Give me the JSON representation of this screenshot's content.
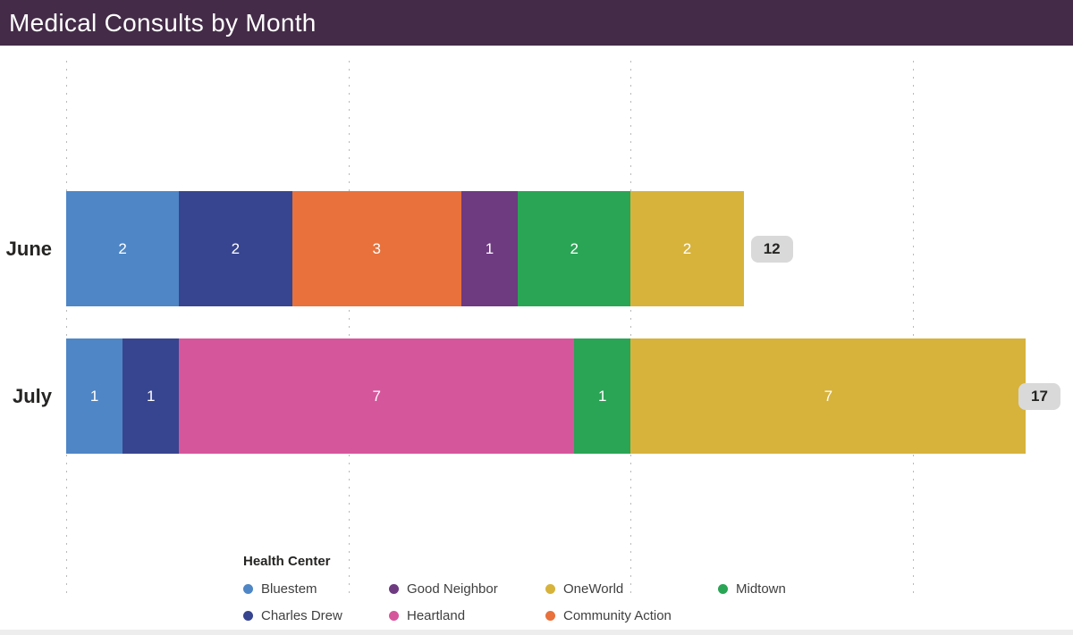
{
  "header": {
    "title": "Medical Consults by Month",
    "bg_color": "#442b48",
    "text_color": "#ffffff"
  },
  "chart_data": {
    "type": "bar",
    "orientation": "horizontal",
    "stacked": true,
    "title": "Medical Consults by Month",
    "categories": [
      "June",
      "July"
    ],
    "series": [
      {
        "name": "Bluestem",
        "color": "#4e86c6",
        "values": [
          2,
          1
        ]
      },
      {
        "name": "Charles Drew",
        "color": "#374590",
        "values": [
          2,
          1
        ]
      },
      {
        "name": "Community Action",
        "color": "#e8713c",
        "values": [
          3,
          0
        ]
      },
      {
        "name": "Good Neighbor",
        "color": "#6e3a80",
        "values": [
          1,
          0
        ]
      },
      {
        "name": "Heartland",
        "color": "#d6569c",
        "values": [
          0,
          7
        ]
      },
      {
        "name": "Midtown",
        "color": "#2aa455",
        "values": [
          2,
          1
        ]
      },
      {
        "name": "OneWorld",
        "color": "#d7b33c",
        "values": [
          2,
          7
        ]
      }
    ],
    "bars": [
      {
        "label": "June",
        "total": "12",
        "segments": [
          {
            "name": "Bluestem",
            "value": 2
          },
          {
            "name": "Charles Drew",
            "value": 2
          },
          {
            "name": "Community Action",
            "value": 3
          },
          {
            "name": "Good Neighbor",
            "value": 1
          },
          {
            "name": "Midtown",
            "value": 2
          },
          {
            "name": "OneWorld",
            "value": 2
          }
        ]
      },
      {
        "label": "July",
        "total": "17",
        "segments": [
          {
            "name": "Bluestem",
            "value": 1
          },
          {
            "name": "Charles Drew",
            "value": 1
          },
          {
            "name": "Heartland",
            "value": 7
          },
          {
            "name": "Midtown",
            "value": 1
          },
          {
            "name": "OneWorld",
            "value": 7
          }
        ]
      }
    ],
    "totals": [
      12,
      17
    ],
    "xlim": [
      0,
      17.8
    ],
    "gridline_values": [
      0,
      5,
      10,
      15
    ],
    "tick_labels_visible": false,
    "grid": "dotted-vertical",
    "value_label_color": "#ffffff",
    "total_badge": {
      "bg": "#d9d9d9",
      "text_color": "#252423"
    },
    "legend": {
      "title": "Health Center",
      "position": "bottom",
      "items": [
        "Bluestem",
        "Good Neighbor",
        "OneWorld",
        "Midtown",
        "Charles Drew",
        "Heartland",
        "Community Action"
      ]
    }
  }
}
